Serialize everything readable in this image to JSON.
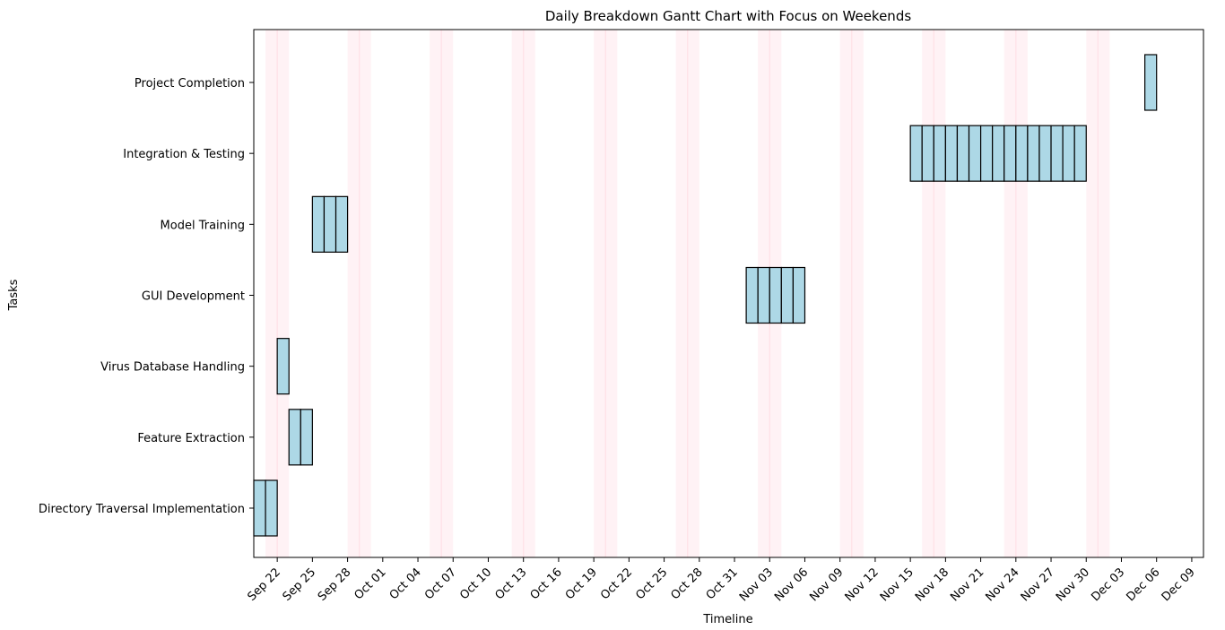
{
  "chart_data": {
    "type": "gantt",
    "title": "Daily Breakdown Gantt Chart with Focus on Weekends",
    "xlabel": "Timeline",
    "ylabel": "Tasks",
    "xlim": [
      "2023-09-20",
      "2023-12-10"
    ],
    "bar_color": "#add8e6",
    "weekend_color": "#ffc0cb",
    "x_ticks": [
      {
        "date": "2023-09-22",
        "label": "Sep 22"
      },
      {
        "date": "2023-09-25",
        "label": "Sep 25"
      },
      {
        "date": "2023-09-28",
        "label": "Sep 28"
      },
      {
        "date": "2023-10-01",
        "label": "Oct 01"
      },
      {
        "date": "2023-10-04",
        "label": "Oct 04"
      },
      {
        "date": "2023-10-07",
        "label": "Oct 07"
      },
      {
        "date": "2023-10-10",
        "label": "Oct 10"
      },
      {
        "date": "2023-10-13",
        "label": "Oct 13"
      },
      {
        "date": "2023-10-16",
        "label": "Oct 16"
      },
      {
        "date": "2023-10-19",
        "label": "Oct 19"
      },
      {
        "date": "2023-10-22",
        "label": "Oct 22"
      },
      {
        "date": "2023-10-25",
        "label": "Oct 25"
      },
      {
        "date": "2023-10-28",
        "label": "Oct 28"
      },
      {
        "date": "2023-10-31",
        "label": "Oct 31"
      },
      {
        "date": "2023-11-03",
        "label": "Nov 03"
      },
      {
        "date": "2023-11-06",
        "label": "Nov 06"
      },
      {
        "date": "2023-11-09",
        "label": "Nov 09"
      },
      {
        "date": "2023-11-12",
        "label": "Nov 12"
      },
      {
        "date": "2023-11-15",
        "label": "Nov 15"
      },
      {
        "date": "2023-11-18",
        "label": "Nov 18"
      },
      {
        "date": "2023-11-21",
        "label": "Nov 21"
      },
      {
        "date": "2023-11-24",
        "label": "Nov 24"
      },
      {
        "date": "2023-11-27",
        "label": "Nov 27"
      },
      {
        "date": "2023-11-30",
        "label": "Nov 30"
      },
      {
        "date": "2023-12-03",
        "label": "Dec 03"
      },
      {
        "date": "2023-12-06",
        "label": "Dec 06"
      },
      {
        "date": "2023-12-09",
        "label": "Dec 09"
      }
    ],
    "weekends": [
      [
        "2023-09-21",
        "2023-09-23"
      ],
      [
        "2023-09-28",
        "2023-09-30"
      ],
      [
        "2023-10-05",
        "2023-10-07"
      ],
      [
        "2023-10-12",
        "2023-10-14"
      ],
      [
        "2023-10-19",
        "2023-10-21"
      ],
      [
        "2023-10-26",
        "2023-10-28"
      ],
      [
        "2023-11-02",
        "2023-11-04"
      ],
      [
        "2023-11-09",
        "2023-11-11"
      ],
      [
        "2023-11-16",
        "2023-11-18"
      ],
      [
        "2023-11-23",
        "2023-11-25"
      ],
      [
        "2023-11-30",
        "2023-12-02"
      ]
    ],
    "tasks": [
      {
        "name": "Directory Traversal Implementation",
        "start": "2023-09-20",
        "days": 2
      },
      {
        "name": "Feature Extraction",
        "start": "2023-09-23",
        "days": 2
      },
      {
        "name": "Virus Database Handling",
        "start": "2023-09-22",
        "days": 1
      },
      {
        "name": "GUI Development",
        "start": "2023-11-01",
        "days": 5
      },
      {
        "name": "Model Training",
        "start": "2023-09-25",
        "days": 3
      },
      {
        "name": "Integration & Testing",
        "start": "2023-11-15",
        "days": 15
      },
      {
        "name": "Project Completion",
        "start": "2023-12-05",
        "days": 1
      }
    ]
  }
}
